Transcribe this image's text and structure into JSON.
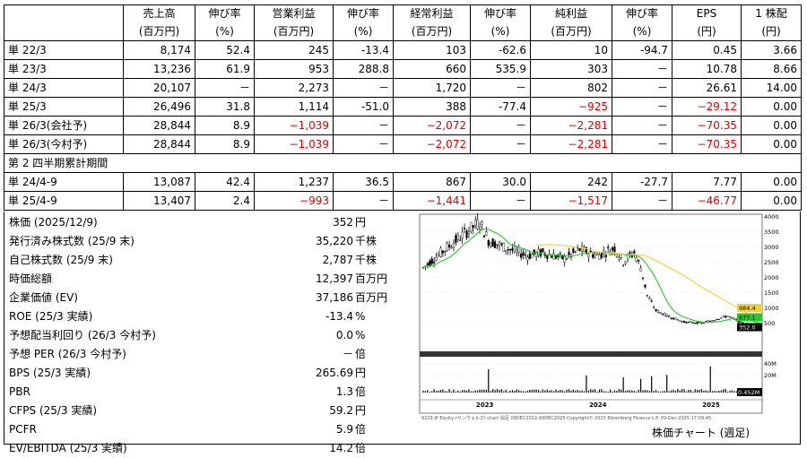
{
  "financials": {
    "headers": [
      {
        "top": "",
        "bottom": ""
      },
      {
        "top": "売上高",
        "bottom": "(百万円)"
      },
      {
        "top": "伸び率",
        "bottom": "(%)"
      },
      {
        "top": "営業利益",
        "bottom": "(百万円)"
      },
      {
        "top": "伸び率",
        "bottom": "(%)"
      },
      {
        "top": "経常利益",
        "bottom": "(百万円)"
      },
      {
        "top": "伸び率",
        "bottom": "(%)"
      },
      {
        "top": "純利益",
        "bottom": "(百万円)"
      },
      {
        "top": "伸び率",
        "bottom": "(%)"
      },
      {
        "top": "EPS",
        "bottom": "(円)"
      },
      {
        "top": "1 株配",
        "bottom": "(円)"
      }
    ],
    "rows": [
      [
        "単 22/3",
        "8,174",
        "52.4",
        "245",
        "-13.4",
        "103",
        "-62.6",
        "10",
        "-94.7",
        "0.45",
        "3.66"
      ],
      [
        "単 23/3",
        "13,236",
        "61.9",
        "953",
        "288.8",
        "660",
        "535.9",
        "303",
        "－",
        "10.78",
        "8.66"
      ],
      [
        "単 24/3",
        "20,107",
        "－",
        "2,273",
        "－",
        "1,720",
        "－",
        "802",
        "－",
        "26.61",
        "14.00"
      ],
      [
        "単 25/3",
        "26,496",
        "31.8",
        "1,114",
        "-51.0",
        "388",
        "-77.4",
        "-925",
        "－",
        "-29.12",
        "0.00"
      ],
      [
        "単 26/3(会社予)",
        "28,844",
        "8.9",
        "-1,039",
        "－",
        "-2,072",
        "－",
        "-2,281",
        "－",
        "-70.35",
        "0.00"
      ],
      [
        "単 26/3(今村予)",
        "28,844",
        "8.9",
        "-1,039",
        "－",
        "-2,072",
        "－",
        "-2,281",
        "－",
        "-70.35",
        "0.00"
      ]
    ],
    "section_label": "第 2 四半期累計期間",
    "rows2": [
      [
        "単 24/4-9",
        "13,087",
        "42.4",
        "1,237",
        "36.5",
        "867",
        "30.0",
        "242",
        "-27.7",
        "7.77",
        "0.00"
      ],
      [
        "単 25/4-9",
        "13,407",
        "2.4",
        "-993",
        "－",
        "-1,441",
        "－",
        "-1,517",
        "－",
        "-46.77",
        "0.00"
      ]
    ]
  },
  "stats": [
    {
      "label": "株価 (2025/12/9)",
      "value": "352",
      "unit": "円"
    },
    {
      "label": "発行済み株式数 (25/9 末)",
      "value": "35,220",
      "unit": "千株"
    },
    {
      "label": "自己株式数 (25/9 末)",
      "value": "2,787",
      "unit": "千株"
    },
    {
      "label": "時価総額",
      "value": "12,397",
      "unit": "百万円"
    },
    {
      "label": "企業価値 (EV)",
      "value": "37,186",
      "unit": "百万円"
    },
    {
      "label": "ROE (25/3 実績)",
      "value": "-13.4",
      "unit": "%"
    },
    {
      "label": "予想配当利回り (26/3 今村予)",
      "value": "0.0",
      "unit": "%"
    },
    {
      "label": "予想 PER (26/3 今村予)",
      "value": "－",
      "unit": "倍"
    },
    {
      "label": "BPS (25/3 実績)",
      "value": "265.69",
      "unit": "円"
    },
    {
      "label": "PBR",
      "value": "1.3",
      "unit": "倍"
    },
    {
      "label": "CFPS (25/3 実績)",
      "value": "59.2",
      "unit": "円"
    },
    {
      "label": "PCFR",
      "value": "5.9",
      "unit": "倍"
    },
    {
      "label": "EV/EBITDA (25/3 実績)",
      "value": "14.2",
      "unit": "倍"
    }
  ],
  "chart": {
    "caption": "株価チャート (週足)",
    "y_ticks": [
      "4000",
      "3500",
      "3000",
      "2500",
      "2000",
      "1500",
      "1000",
      "500"
    ],
    "year_labels": [
      "2023",
      "2024",
      "2025"
    ],
    "price_tags": [
      "984.4",
      "677.1",
      "352.0"
    ],
    "vol_ticks": [
      "40M",
      "20M"
    ],
    "vol_tag": "0.452M",
    "footer": "9229 JP Equity (サンウェルズ) chart 週足 09DEC2022-09DEC2025  Copyright© 2025 Bloomberg Finance L.P.  09-Dec-2025 17:09:45",
    "colors": {
      "candles": "#000000",
      "ma_fast": "#22cc22",
      "ma_slow": "#f2d230",
      "tag1": "#f2d230",
      "tag2": "#22cc22",
      "tag3": "#000000"
    }
  }
}
